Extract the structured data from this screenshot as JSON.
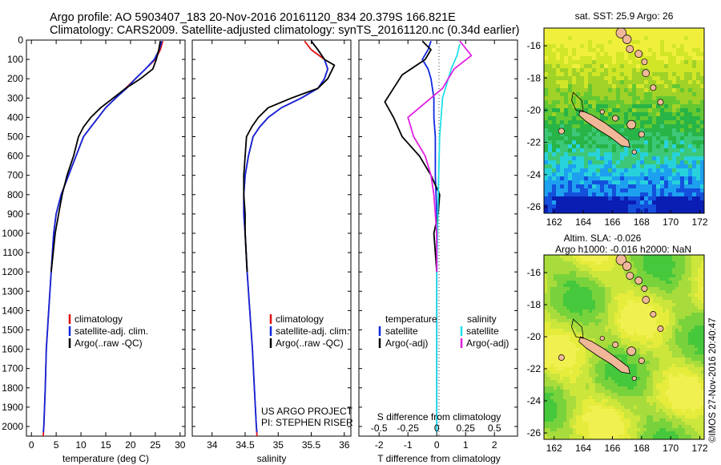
{
  "header": {
    "line1": "Argo profile: AO 5903407_183 20-Nov-2016 20161120_834 20.379S 166.821E",
    "line2": "Climatology: CARS2009. Satellite-adjusted climatology: synTS_20161120.nc (0.34d earlier)"
  },
  "colors": {
    "climatology": "#e01010",
    "satellite": "#1028e0",
    "argo": "#000000",
    "salinity_satellite": "#20e0e8",
    "salinity_argo": "#e020e0",
    "land": "#f0b898"
  },
  "chart_data": [
    {
      "type": "line",
      "xlabel": "temperature (deg C)",
      "ylabel": "",
      "xlim": [
        -1,
        31
      ],
      "ylim": [
        2050,
        0
      ],
      "x_ticks": [
        "0",
        "5",
        "10",
        "15",
        "20",
        "25",
        "30"
      ],
      "y_ticks": [
        "0",
        "100",
        "200",
        "300",
        "400",
        "500",
        "600",
        "700",
        "800",
        "900",
        "1000",
        "1100",
        "1200",
        "1300",
        "1400",
        "1500",
        "1600",
        "1700",
        "1800",
        "1900",
        "2000"
      ],
      "legend": [
        "climatology",
        "satellite-adj. clim.",
        "Argo(..raw -QC)"
      ],
      "series": [
        {
          "name": "climatology",
          "color": "#e01010",
          "points": [
            [
              26.5,
              5
            ],
            [
              26,
              50
            ],
            [
              25,
              100
            ],
            [
              23,
              150
            ],
            [
              21,
              200
            ],
            [
              19,
              250
            ],
            [
              17,
              300
            ],
            [
              15,
              350
            ],
            [
              13.5,
              400
            ],
            [
              12,
              450
            ],
            [
              10.5,
              500
            ],
            [
              9,
              600
            ],
            [
              7.5,
              700
            ],
            [
              6,
              800
            ],
            [
              5,
              900
            ],
            [
              4.5,
              1000
            ],
            [
              4,
              1200
            ],
            [
              3.5,
              1400
            ],
            [
              3,
              1600
            ],
            [
              2.8,
              1800
            ],
            [
              2.5,
              2000
            ],
            [
              2.4,
              2050
            ]
          ]
        },
        {
          "name": "satellite-adj. clim.",
          "color": "#1028e0",
          "points": [
            [
              26.3,
              5
            ],
            [
              25.8,
              50
            ],
            [
              24.8,
              100
            ],
            [
              23,
              150
            ],
            [
              21,
              200
            ],
            [
              19.2,
              250
            ],
            [
              17,
              300
            ],
            [
              15,
              350
            ],
            [
              13.5,
              400
            ],
            [
              12,
              450
            ],
            [
              10.5,
              500
            ],
            [
              9,
              600
            ],
            [
              7.5,
              700
            ],
            [
              6,
              800
            ],
            [
              5,
              900
            ],
            [
              4.5,
              1000
            ],
            [
              4,
              1200
            ],
            [
              3.5,
              1400
            ],
            [
              3,
              1600
            ],
            [
              2.8,
              1800
            ],
            [
              2.5,
              2000
            ],
            [
              2.4,
              2030
            ]
          ]
        },
        {
          "name": "Argo(..raw -QC)",
          "color": "#000000",
          "points": [
            [
              26,
              5
            ],
            [
              25.7,
              50
            ],
            [
              25.2,
              100
            ],
            [
              24.5,
              150
            ],
            [
              22,
              200
            ],
            [
              19,
              250
            ],
            [
              16.5,
              300
            ],
            [
              14,
              350
            ],
            [
              12,
              400
            ],
            [
              10.5,
              450
            ],
            [
              9.5,
              500
            ],
            [
              8.5,
              600
            ],
            [
              7.2,
              700
            ],
            [
              6.2,
              800
            ],
            [
              5.5,
              900
            ],
            [
              4.8,
              1000
            ],
            [
              4,
              1200
            ]
          ]
        }
      ]
    },
    {
      "type": "line",
      "xlabel": "salinity",
      "ylabel": "",
      "xlim": [
        33.7,
        36.1
      ],
      "ylim": [
        2050,
        0
      ],
      "x_ticks": [
        "34",
        "34.5",
        "35",
        "35.5",
        "36"
      ],
      "legend": [
        "climatology",
        "satellite-adj. clim.",
        "Argo(..raw -QC)"
      ],
      "annotation": [
        "US ARGO PROJECT",
        "PI: STEPHEN RISER"
      ],
      "series": [
        {
          "name": "climatology",
          "color": "#e01010",
          "points": [
            [
              35.4,
              5
            ],
            [
              35.5,
              50
            ],
            [
              35.7,
              100
            ],
            [
              35.75,
              150
            ],
            [
              35.7,
              200
            ],
            [
              35.6,
              250
            ],
            [
              35.35,
              300
            ],
            [
              35.05,
              350
            ],
            [
              34.85,
              400
            ],
            [
              34.72,
              450
            ],
            [
              34.62,
              500
            ],
            [
              34.55,
              600
            ],
            [
              34.5,
              700
            ],
            [
              34.48,
              800
            ],
            [
              34.48,
              900
            ],
            [
              34.5,
              1000
            ],
            [
              34.53,
              1200
            ],
            [
              34.57,
              1400
            ],
            [
              34.61,
              1600
            ],
            [
              34.64,
              1800
            ],
            [
              34.67,
              2000
            ],
            [
              34.68,
              2050
            ]
          ]
        },
        {
          "name": "satellite-adj. clim.",
          "color": "#1028e0",
          "points": [
            [
              35.5,
              5
            ],
            [
              35.6,
              50
            ],
            [
              35.7,
              100
            ],
            [
              35.75,
              150
            ],
            [
              35.7,
              200
            ],
            [
              35.6,
              250
            ],
            [
              35.35,
              300
            ],
            [
              35.05,
              350
            ],
            [
              34.85,
              400
            ],
            [
              34.72,
              450
            ],
            [
              34.62,
              500
            ],
            [
              34.55,
              600
            ],
            [
              34.5,
              700
            ],
            [
              34.48,
              800
            ],
            [
              34.48,
              900
            ],
            [
              34.5,
              1000
            ],
            [
              34.53,
              1200
            ],
            [
              34.57,
              1400
            ],
            [
              34.61,
              1600
            ],
            [
              34.64,
              1800
            ],
            [
              34.67,
              2000
            ],
            [
              34.68,
              2030
            ]
          ]
        },
        {
          "name": "Argo(..raw -QC)",
          "color": "#000000",
          "points": [
            [
              35.5,
              5
            ],
            [
              35.6,
              50
            ],
            [
              35.7,
              100
            ],
            [
              35.85,
              130
            ],
            [
              35.75,
              200
            ],
            [
              35.6,
              250
            ],
            [
              35.2,
              300
            ],
            [
              34.85,
              350
            ],
            [
              34.7,
              400
            ],
            [
              34.6,
              450
            ],
            [
              34.52,
              500
            ],
            [
              34.5,
              600
            ],
            [
              34.48,
              700
            ],
            [
              34.48,
              800
            ],
            [
              34.5,
              900
            ],
            [
              34.5,
              1000
            ],
            [
              34.53,
              1200
            ]
          ]
        }
      ]
    },
    {
      "type": "line",
      "xlabel": "T difference from climatology",
      "title_top": "S difference from climatology",
      "xlim": [
        -2.7,
        2.8
      ],
      "ylim": [
        2050,
        0
      ],
      "x_ticks": [
        "-2",
        "-1",
        "0",
        "1",
        "2"
      ],
      "top_ticks": [
        "-0.5",
        "-0.25",
        "0",
        "0.25",
        "0.5"
      ],
      "legend_temperature": {
        "head": "temperature",
        "items": [
          "satellite",
          "Argo(-adj)"
        ]
      },
      "legend_salinity": {
        "head": "salinity",
        "items": [
          "satellite",
          "Argo(-adj)"
        ]
      },
      "series": [
        {
          "name": "temperature satellite",
          "color": "#1028e0",
          "points": [
            [
              -0.2,
              5
            ],
            [
              -0.3,
              50
            ],
            [
              -0.5,
              100
            ],
            [
              -0.3,
              150
            ],
            [
              -0.2,
              200
            ],
            [
              -0.1,
              300
            ],
            [
              -0.1,
              400
            ],
            [
              -0.05,
              500
            ],
            [
              -0.05,
              700
            ],
            [
              0,
              900
            ],
            [
              0,
              1100
            ],
            [
              0,
              1500
            ],
            [
              0,
              2000
            ],
            [
              0,
              2030
            ]
          ]
        },
        {
          "name": "temperature Argo(-adj)",
          "color": "#000000",
          "points": [
            [
              -0.5,
              5
            ],
            [
              -0.2,
              50
            ],
            [
              -0.4,
              100
            ],
            [
              -1.2,
              180
            ],
            [
              -1.5,
              250
            ],
            [
              -1.8,
              320
            ],
            [
              -1.5,
              400
            ],
            [
              -1.2,
              500
            ],
            [
              -0.6,
              600
            ],
            [
              -0.2,
              700
            ],
            [
              0.1,
              800
            ],
            [
              0.05,
              900
            ],
            [
              -0.1,
              1000
            ],
            [
              0,
              1200
            ]
          ]
        },
        {
          "name": "salinity satellite",
          "color": "#20e0e8",
          "points": [
            [
              0.8,
              20
            ],
            [
              0.7,
              80
            ],
            [
              0.5,
              150
            ],
            [
              0.2,
              300
            ],
            [
              0.1,
              500
            ],
            [
              0.05,
              800
            ],
            [
              0,
              1200
            ],
            [
              0,
              1600
            ],
            [
              0,
              2030
            ]
          ]
        },
        {
          "name": "salinity Argo(-adj)",
          "color": "#e020e0",
          "points": [
            [
              0.8,
              5
            ],
            [
              1.2,
              80
            ],
            [
              0.6,
              150
            ],
            [
              0.2,
              250
            ],
            [
              -1,
              400
            ],
            [
              -0.8,
              500
            ],
            [
              -0.4,
              600
            ],
            [
              -0.2,
              700
            ],
            [
              -0.1,
              800
            ],
            [
              0,
              1000
            ],
            [
              0,
              1200
            ]
          ]
        }
      ]
    },
    {
      "type": "heatmap",
      "title": "sat. SST: 25.9 Argo: 26",
      "xlim": [
        161.3,
        172.3
      ],
      "ylim": [
        -26.4,
        -14.9
      ],
      "x_ticks": [
        "162",
        "164",
        "166",
        "168",
        "170",
        "172"
      ],
      "y_ticks": [
        "-16",
        "-18",
        "-20",
        "-22",
        "-24",
        "-26"
      ]
    },
    {
      "type": "heatmap",
      "title_lines": [
        "Altim. SLA: -0.026",
        "Argo h1000: -0.016 h2000: NaN"
      ],
      "xlim": [
        161.3,
        172.3
      ],
      "ylim": [
        -26.4,
        -14.9
      ],
      "x_ticks": [
        "162",
        "164",
        "166",
        "168",
        "170",
        "172"
      ],
      "y_ticks": [
        "-16",
        "-18",
        "-20",
        "-22",
        "-24",
        "-26"
      ]
    }
  ],
  "credit": "©IMOS 27-Nov-2016 20:40:47"
}
